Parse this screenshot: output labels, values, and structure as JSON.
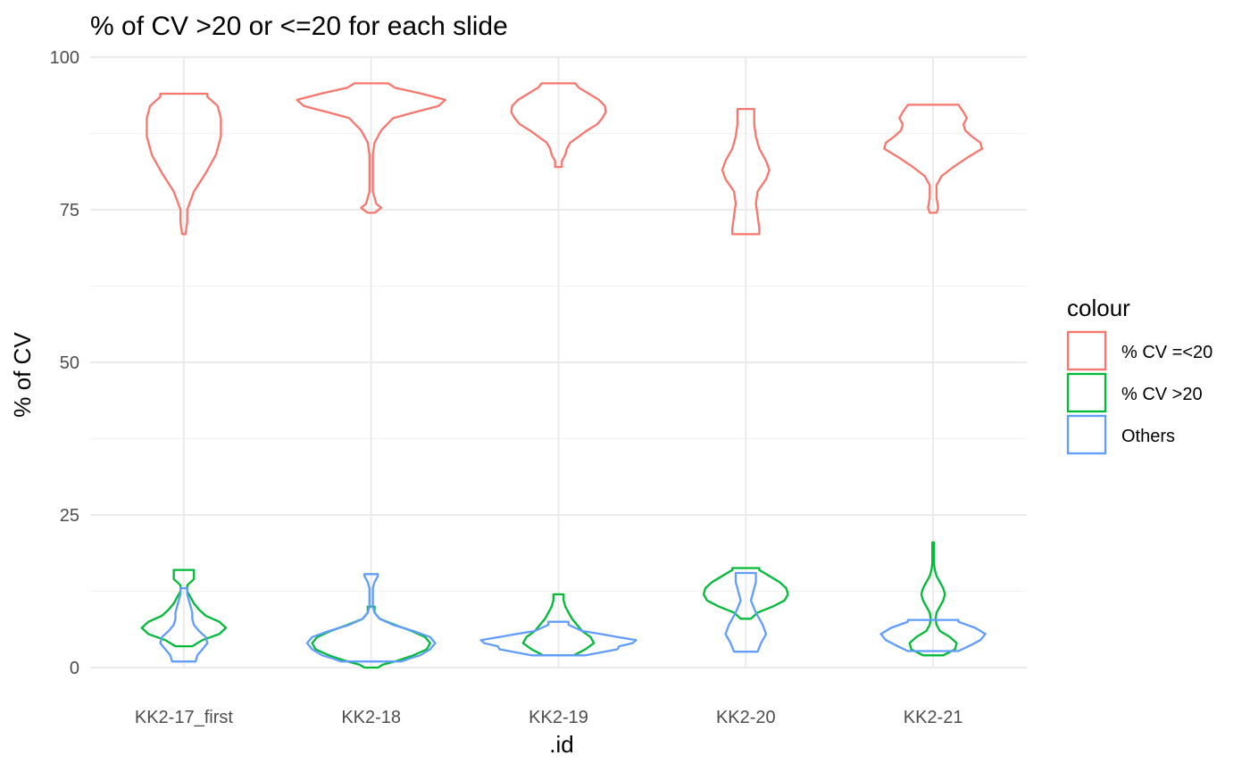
{
  "chart_data": {
    "type": "violin",
    "title": "% of CV >20 or <=20 for each slide",
    "xlabel": ".id",
    "ylabel": "% of CV",
    "categories": [
      "KK2-17_first",
      "KK2-18",
      "KK2-19",
      "KK2-20",
      "KK2-21"
    ],
    "ylim": [
      0,
      100
    ],
    "y_ticks": [
      0,
      25,
      50,
      75,
      100
    ],
    "grid": true,
    "legend": {
      "title": "colour",
      "placement": "right",
      "entries": [
        {
          "name": "% CV =<20",
          "color": "#F8766D"
        },
        {
          "name": "% CV >20",
          "color": "#00BA38"
        },
        {
          "name": "Others",
          "color": "#619CFF"
        }
      ]
    },
    "series": [
      {
        "name": "% CV =<20",
        "color": "#F8766D",
        "violins": [
          {
            "category": "KK2-17_first",
            "profile": [
              [
                71,
                0.02
              ],
              [
                73,
                0.04
              ],
              [
                75,
                0.04
              ],
              [
                78,
                0.12
              ],
              [
                81,
                0.26
              ],
              [
                84,
                0.38
              ],
              [
                87,
                0.44
              ],
              [
                90,
                0.44
              ],
              [
                92,
                0.4
              ],
              [
                93.5,
                0.28
              ],
              [
                94,
                0.28
              ]
            ]
          },
          {
            "category": "KK2-18",
            "profile": [
              [
                74.5,
                0.04
              ],
              [
                75.3,
                0.12
              ],
              [
                76,
                0.06
              ],
              [
                78,
                0.02
              ],
              [
                81,
                0.02
              ],
              [
                84,
                0.02
              ],
              [
                86,
                0.04
              ],
              [
                88,
                0.12
              ],
              [
                90,
                0.26
              ],
              [
                91,
                0.52
              ],
              [
                92,
                0.8
              ],
              [
                93,
                0.88
              ],
              [
                94,
                0.6
              ],
              [
                95,
                0.28
              ],
              [
                95.7,
                0.2
              ]
            ]
          },
          {
            "category": "KK2-19",
            "profile": [
              [
                82,
                0.04
              ],
              [
                83,
                0.04
              ],
              [
                84,
                0.08
              ],
              [
                85,
                0.1
              ],
              [
                86,
                0.14
              ],
              [
                87,
                0.24
              ],
              [
                88,
                0.34
              ],
              [
                89,
                0.46
              ],
              [
                90,
                0.52
              ],
              [
                91,
                0.56
              ],
              [
                92,
                0.55
              ],
              [
                93,
                0.48
              ],
              [
                94,
                0.36
              ],
              [
                95,
                0.24
              ],
              [
                95.7,
                0.2
              ]
            ]
          },
          {
            "category": "KK2-20",
            "profile": [
              [
                71,
                0.16
              ],
              [
                72,
                0.16
              ],
              [
                74,
                0.14
              ],
              [
                76,
                0.12
              ],
              [
                78,
                0.14
              ],
              [
                80,
                0.24
              ],
              [
                81.5,
                0.28
              ],
              [
                83,
                0.24
              ],
              [
                85,
                0.16
              ],
              [
                87,
                0.12
              ],
              [
                89,
                0.1
              ],
              [
                91.5,
                0.1
              ]
            ]
          },
          {
            "category": "KK2-21",
            "profile": [
              [
                74.5,
                0.04
              ],
              [
                75.3,
                0.06
              ],
              [
                77,
                0.04
              ],
              [
                79,
                0.04
              ],
              [
                80.5,
                0.1
              ],
              [
                82,
                0.24
              ],
              [
                83.5,
                0.4
              ],
              [
                85,
                0.58
              ],
              [
                86,
                0.56
              ],
              [
                87,
                0.46
              ],
              [
                88,
                0.38
              ],
              [
                89,
                0.36
              ],
              [
                90,
                0.4
              ],
              [
                91,
                0.36
              ],
              [
                92.2,
                0.3
              ]
            ]
          }
        ]
      },
      {
        "name": "% CV >20",
        "color": "#00BA38",
        "violins": [
          {
            "category": "KK2-17_first",
            "profile": [
              [
                3.5,
                0.1
              ],
              [
                4.5,
                0.22
              ],
              [
                5.5,
                0.42
              ],
              [
                6.5,
                0.5
              ],
              [
                7.5,
                0.42
              ],
              [
                8.5,
                0.26
              ],
              [
                9.5,
                0.18
              ],
              [
                10.5,
                0.12
              ],
              [
                11.5,
                0.08
              ],
              [
                12.5,
                0.04
              ],
              [
                13.5,
                0.04
              ],
              [
                14.5,
                0.12
              ],
              [
                16,
                0.12
              ]
            ]
          },
          {
            "category": "KK2-18",
            "profile": [
              [
                0,
                0.08
              ],
              [
                0.5,
                0.14
              ],
              [
                1,
                0.28
              ],
              [
                2,
                0.5
              ],
              [
                3,
                0.66
              ],
              [
                4,
                0.7
              ],
              [
                5,
                0.64
              ],
              [
                6,
                0.48
              ],
              [
                7,
                0.28
              ],
              [
                8,
                0.1
              ],
              [
                9,
                0.04
              ],
              [
                10,
                0.04
              ]
            ]
          },
          {
            "category": "KK2-19",
            "profile": [
              [
                2,
                0.18
              ],
              [
                3,
                0.32
              ],
              [
                4,
                0.42
              ],
              [
                5,
                0.38
              ],
              [
                6,
                0.28
              ],
              [
                7,
                0.22
              ],
              [
                8,
                0.16
              ],
              [
                9,
                0.12
              ],
              [
                10,
                0.08
              ],
              [
                11,
                0.06
              ],
              [
                12,
                0.06
              ]
            ]
          },
          {
            "category": "KK2-20",
            "profile": [
              [
                8,
                0.06
              ],
              [
                9,
                0.14
              ],
              [
                10,
                0.32
              ],
              [
                11,
                0.46
              ],
              [
                12,
                0.5
              ],
              [
                13,
                0.48
              ],
              [
                14,
                0.4
              ],
              [
                15,
                0.28
              ],
              [
                16,
                0.16
              ],
              [
                16.3,
                0.16
              ]
            ]
          },
          {
            "category": "KK2-21",
            "profile": [
              [
                2,
                0.12
              ],
              [
                3,
                0.26
              ],
              [
                4,
                0.28
              ],
              [
                5,
                0.2
              ],
              [
                6,
                0.08
              ],
              [
                7,
                0.04
              ],
              [
                8,
                0.03
              ],
              [
                9,
                0.04
              ],
              [
                10,
                0.08
              ],
              [
                11,
                0.12
              ],
              [
                12,
                0.14
              ],
              [
                13,
                0.12
              ],
              [
                14,
                0.08
              ],
              [
                15,
                0.04
              ],
              [
                16,
                0.02
              ],
              [
                17,
                0.01
              ],
              [
                18,
                0.01
              ],
              [
                19,
                0.01
              ],
              [
                20.5,
                0.01
              ]
            ]
          }
        ]
      },
      {
        "name": "Others",
        "color": "#619CFF",
        "violins": [
          {
            "category": "KK2-17_first",
            "profile": [
              [
                1,
                0.14
              ],
              [
                2,
                0.16
              ],
              [
                3,
                0.22
              ],
              [
                4,
                0.28
              ],
              [
                5,
                0.26
              ],
              [
                6,
                0.18
              ],
              [
                7,
                0.12
              ],
              [
                8,
                0.1
              ],
              [
                9,
                0.1
              ],
              [
                10,
                0.08
              ],
              [
                11,
                0.06
              ],
              [
                12,
                0.04
              ],
              [
                13,
                0.04
              ]
            ]
          },
          {
            "category": "KK2-18",
            "profile": [
              [
                1,
                0.36
              ],
              [
                1.5,
                0.46
              ],
              [
                2,
                0.58
              ],
              [
                3,
                0.7
              ],
              [
                4,
                0.76
              ],
              [
                5,
                0.7
              ],
              [
                6,
                0.5
              ],
              [
                7,
                0.26
              ],
              [
                8,
                0.1
              ],
              [
                9,
                0.04
              ],
              [
                10,
                0.02
              ],
              [
                11,
                0.02
              ],
              [
                12,
                0.02
              ],
              [
                13,
                0.02
              ],
              [
                14,
                0.04
              ],
              [
                15,
                0.08
              ],
              [
                15.3,
                0.08
              ]
            ]
          },
          {
            "category": "KK2-19",
            "profile": [
              [
                2,
                0.32
              ],
              [
                3,
                0.7
              ],
              [
                3.5,
                0.72
              ],
              [
                4,
                0.88
              ],
              [
                4.5,
                0.92
              ],
              [
                5,
                0.7
              ],
              [
                5.5,
                0.5
              ],
              [
                6,
                0.28
              ],
              [
                7,
                0.12
              ],
              [
                7.5,
                0.12
              ]
            ]
          },
          {
            "category": "KK2-20",
            "profile": [
              [
                2.6,
                0.14
              ],
              [
                4,
                0.18
              ],
              [
                5.5,
                0.24
              ],
              [
                7,
                0.2
              ],
              [
                9,
                0.12
              ],
              [
                11,
                0.06
              ],
              [
                12,
                0.08
              ],
              [
                13,
                0.1
              ],
              [
                14,
                0.12
              ],
              [
                15.5,
                0.12
              ]
            ]
          },
          {
            "category": "KK2-21",
            "profile": [
              [
                2.7,
                0.3
              ],
              [
                3.5,
                0.42
              ],
              [
                4.5,
                0.56
              ],
              [
                5.5,
                0.62
              ],
              [
                6.5,
                0.5
              ],
              [
                7.5,
                0.3
              ],
              [
                7.8,
                0.3
              ]
            ]
          }
        ]
      }
    ]
  }
}
